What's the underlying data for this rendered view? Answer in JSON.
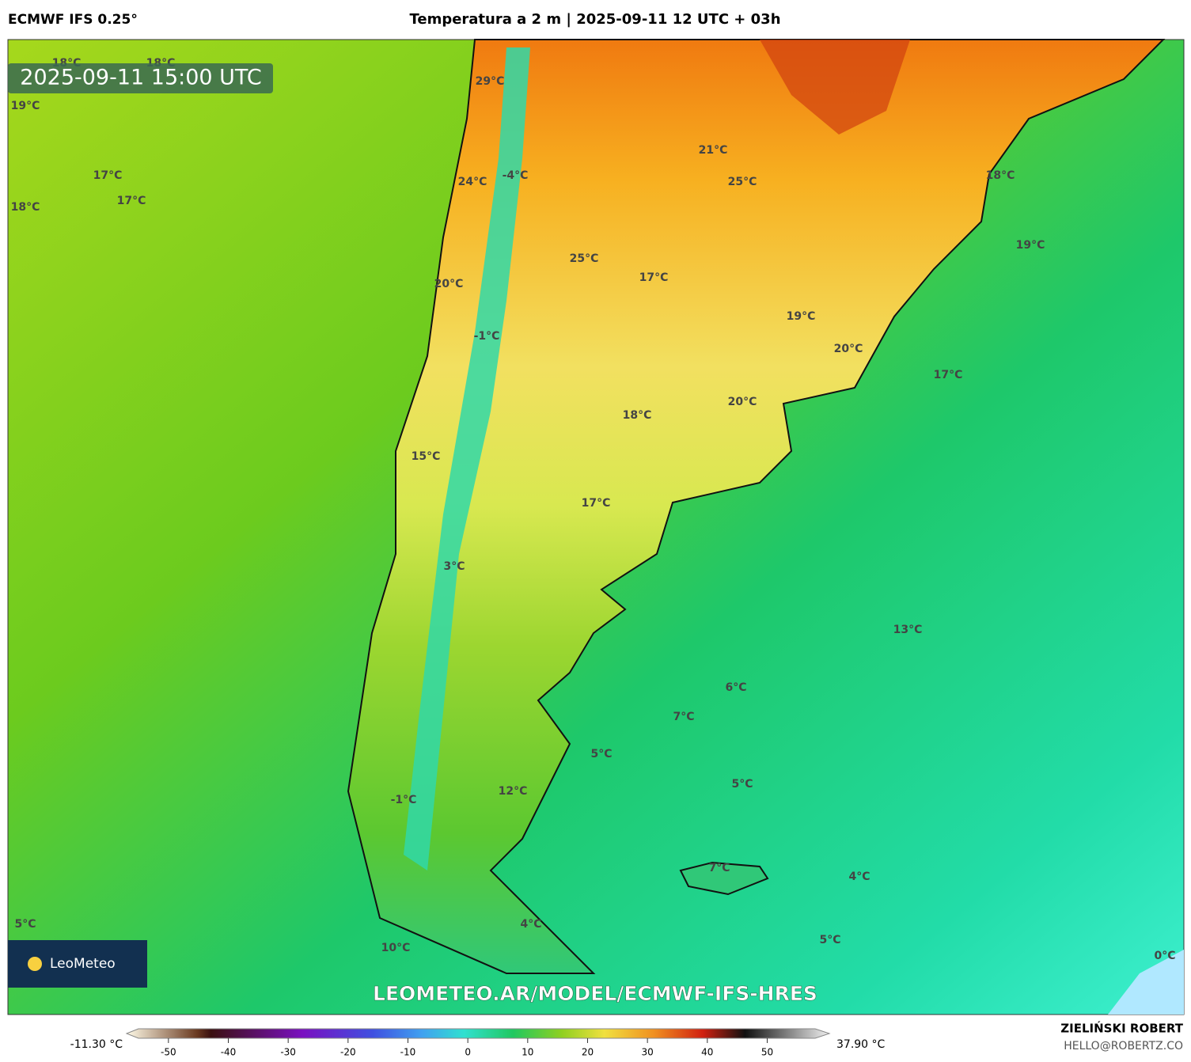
{
  "header": {
    "model": "ECMWF IFS 0.25°",
    "title": "Temperatura a 2 m | 2025-09-11 12 UTC + 03h"
  },
  "map": {
    "timestamp": "2025-09-11 15:00 UTC",
    "labels": [
      "18°C",
      "18°C",
      "19°C",
      "17°C",
      "17°C",
      "18°C",
      "29°C",
      "-4°C",
      "24°C",
      "21°C",
      "25°C",
      "18°C",
      "19°C",
      "25°C",
      "17°C",
      "20°C",
      "19°C",
      "-1°C",
      "20°C",
      "17°C",
      "20°C",
      "18°C",
      "15°C",
      "17°C",
      "3°C",
      "13°C",
      "6°C",
      "7°C",
      "5°C",
      "5°C",
      "12°C",
      "-1°C",
      "7°C",
      "4°C",
      "5°C",
      "4°C",
      "10°C",
      "5°C",
      "0°C"
    ],
    "logo": "LeoMeteo",
    "watermark": "LEOMETEO.AR/MODEL/ECMWF-IFS-HRES"
  },
  "colorbar": {
    "min_label": "-11.30 °C",
    "max_label": "37.90 °C",
    "range": [
      -55,
      58
    ],
    "ticks": [
      -50,
      -40,
      -30,
      -20,
      -10,
      0,
      10,
      20,
      30,
      40,
      50
    ]
  },
  "footer": {
    "author": "ZIELIŃSKI ROBERT",
    "email": "HELLO@ROBERTZ.CO"
  }
}
